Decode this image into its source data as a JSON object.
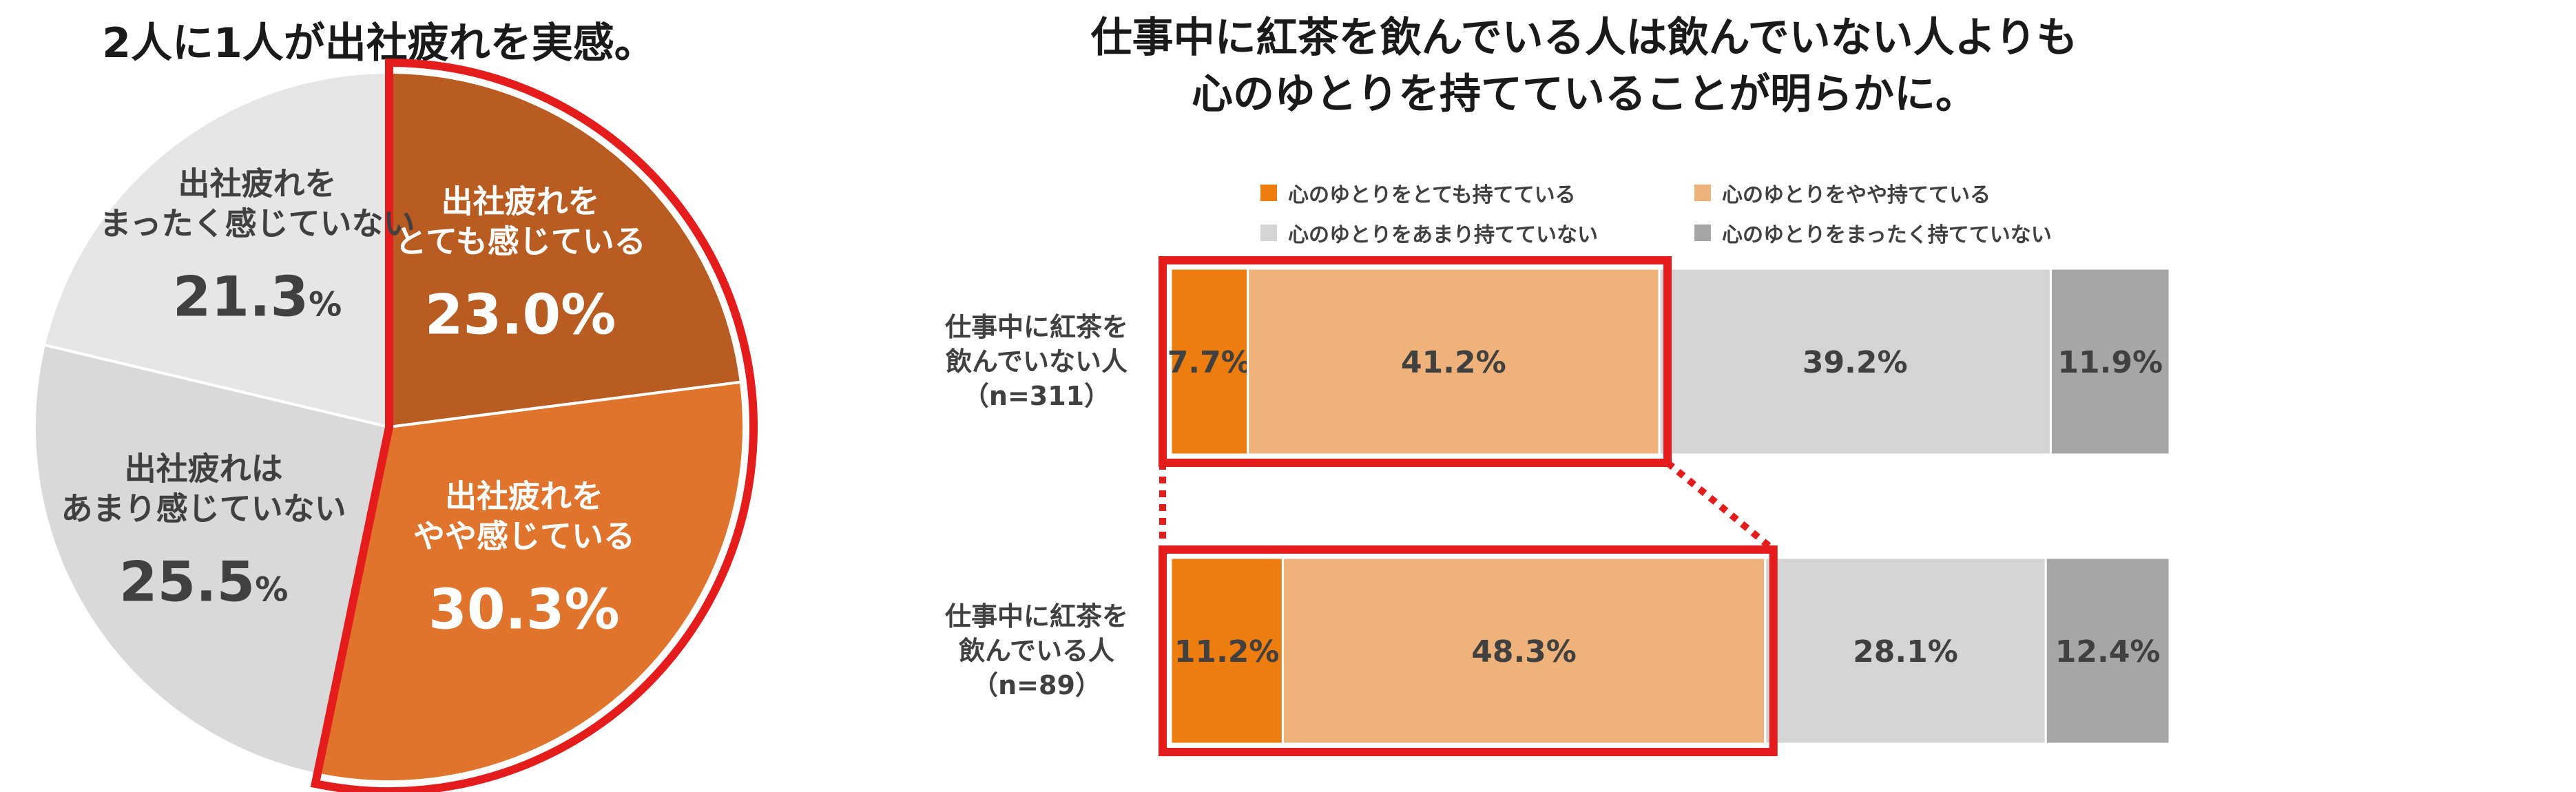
{
  "pie_title": "2人に1人が出社疲れを実感。",
  "bar_title_line1": "仕事中に紅茶を飲んでいる人は飲んでいない人よりも",
  "bar_title_line2": "心のゆとりを持てていることが明らかに。",
  "percent_sign": "%",
  "chart_data": [
    {
      "type": "pie",
      "title": "2人に1人が出社疲れを実感。",
      "slices": [
        {
          "label_lines": [
            "出社疲れを",
            "とても感じている"
          ],
          "value": 23.0,
          "display": "23.0",
          "color": "#b85c22",
          "text_color": "#ffffff"
        },
        {
          "label_lines": [
            "出社疲れを",
            "やや感じている"
          ],
          "value": 30.3,
          "display": "30.3",
          "color": "#e0742c",
          "text_color": "#ffffff"
        },
        {
          "label_lines": [
            "出社疲れは",
            "あまり感じていない"
          ],
          "value": 25.5,
          "display": "25.5",
          "color": "#d9d9d9",
          "text_color": "#404040"
        },
        {
          "label_lines": [
            "出社疲れを",
            "まったく感じていない"
          ],
          "value": 21.3,
          "display": "21.3",
          "color": "#e6e6e6",
          "text_color": "#404040"
        }
      ],
      "highlight": "first two slices outlined in red"
    },
    {
      "type": "bar",
      "orientation": "horizontal-stacked-100",
      "title": "仕事中に紅茶を飲んでいる人は飲んでいない人よりも心のゆとりを持てていることが明らかに。",
      "legend": [
        {
          "name": "心のゆとりをとても持てている",
          "color": "#ed7d0f"
        },
        {
          "name": "心のゆとりをやや持てている",
          "color": "#eeb27a"
        },
        {
          "name": "心のゆとりをあまり持てていない",
          "color": "#d4d4d4"
        },
        {
          "name": "心のゆとりをまったく持てていない",
          "color": "#a6a6a6"
        }
      ],
      "legend_position": "top",
      "rows": [
        {
          "label_lines": [
            "仕事中に紅茶を",
            "飲んでいない人",
            "（n=311）"
          ],
          "values": [
            7.7,
            41.2,
            39.2,
            11.9
          ],
          "labels": [
            "7.7%",
            "41.2%",
            "39.2%",
            "11.9%"
          ]
        },
        {
          "label_lines": [
            "仕事中に紅茶を",
            "飲んでいる人",
            "（n=89）"
          ],
          "values": [
            11.2,
            48.3,
            28.1,
            12.4
          ],
          "labels": [
            "11.2%",
            "48.3%",
            "28.1%",
            "12.4%"
          ]
        }
      ],
      "highlight": "first two segments of each row outlined in red, connected by dotted red lines"
    }
  ]
}
